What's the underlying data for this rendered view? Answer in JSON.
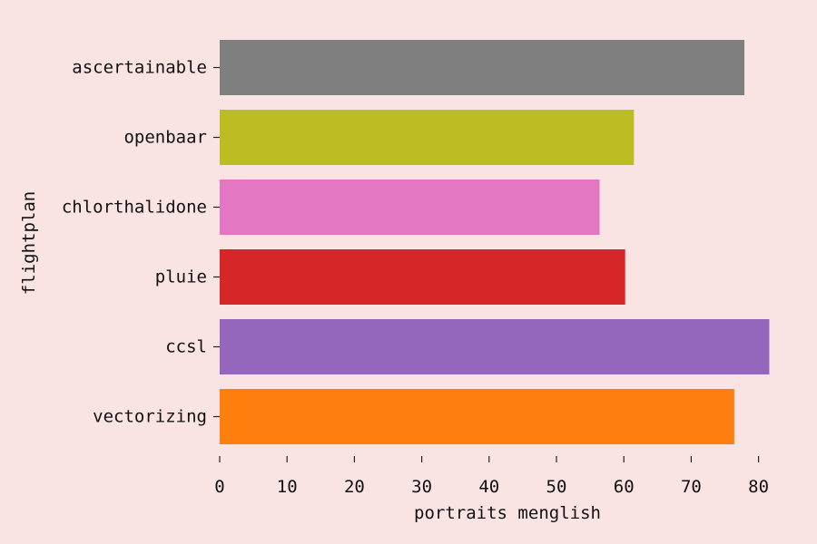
{
  "chart_data": {
    "type": "bar",
    "orientation": "horizontal",
    "title": "",
    "xlabel": "portraits menglish",
    "ylabel": "flightplan",
    "xlim": [
      0,
      85
    ],
    "xticks": [
      0,
      10,
      20,
      30,
      40,
      50,
      60,
      70,
      80
    ],
    "grid": false,
    "legend": "none",
    "categories": [
      "ascertainable",
      "openbaar",
      "chlorthalidone",
      "pluie",
      "ccsl",
      "vectorizing"
    ],
    "values": [
      77.9,
      61.5,
      56.4,
      60.2,
      81.6,
      76.4
    ],
    "colors": [
      "#7f7f7f",
      "#bcbd22",
      "#e377c2",
      "#d62728",
      "#9467bd",
      "#ff7f0e"
    ]
  }
}
